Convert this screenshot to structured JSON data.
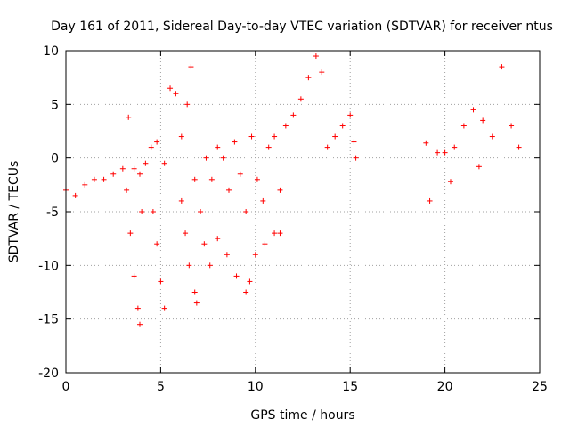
{
  "chart_data": {
    "type": "scatter",
    "title": "Day 161 of 2011, Sidereal Day-to-day VTEC variation (SDTVAR) for receiver ntus",
    "xlabel": "GPS time / hours",
    "ylabel": "SDTVAR / TECUs",
    "xlim": [
      0,
      25
    ],
    "ylim": [
      -20,
      10
    ],
    "xticks": [
      0,
      5,
      10,
      15,
      20,
      25
    ],
    "yticks": [
      -20,
      -15,
      -10,
      -5,
      0,
      5,
      10
    ],
    "grid": true,
    "legend": "none",
    "marker": "plus",
    "color": "#ff0000",
    "series": [
      {
        "x": [
          0.0,
          0.5,
          1.0,
          1.5,
          2.0,
          2.5,
          3.0,
          3.3,
          3.6,
          3.9,
          4.2,
          4.5,
          4.8,
          5.2,
          5.5,
          5.8,
          6.1,
          6.4,
          6.6,
          6.8,
          7.1,
          7.4,
          7.7,
          8.0,
          8.3,
          8.6,
          8.9,
          9.2,
          9.5,
          9.8,
          10.1,
          10.4,
          10.7,
          11.0,
          11.3,
          11.6,
          12.0,
          12.4,
          12.8,
          13.2,
          13.5,
          13.8,
          14.2,
          14.6,
          15.0,
          15.2,
          15.3,
          19.2,
          19.6,
          20.0,
          20.5,
          21.0,
          21.5,
          22.0,
          22.5,
          23.0,
          23.5,
          23.9
        ],
        "y": [
          -3.0,
          -3.5,
          -2.5,
          -2.0,
          -2.0,
          -1.5,
          -1.0,
          3.8,
          -1.0,
          -1.5,
          -0.5,
          1.0,
          1.5,
          -0.5,
          6.5,
          6.0,
          2.0,
          5.0,
          8.5,
          -2.0,
          -5.0,
          0.0,
          -2.0,
          1.0,
          0.0,
          -3.0,
          1.5,
          -1.5,
          -5.0,
          2.0,
          -2.0,
          -4.0,
          1.0,
          2.0,
          -3.0,
          3.0,
          4.0,
          5.5,
          7.5,
          9.5,
          8.0,
          1.0,
          2.0,
          3.0,
          4.0,
          1.5,
          0.0,
          -4.0,
          0.5,
          0.5,
          1.0,
          3.0,
          4.5,
          3.5,
          2.0,
          8.5,
          3.0,
          1.0
        ]
      },
      {
        "x": [
          3.2,
          3.4,
          3.6,
          3.8,
          3.9,
          4.6,
          4.8,
          5.0,
          5.2,
          6.1,
          6.3,
          6.5,
          6.8,
          6.9,
          7.3,
          7.6,
          8.0,
          8.5,
          9.0,
          9.5,
          9.7,
          10.0,
          10.5,
          11.0,
          11.3,
          4.0,
          20.3,
          21.8,
          19.0
        ],
        "y": [
          -3.0,
          -7.0,
          -11.0,
          -14.0,
          -15.5,
          -5.0,
          -8.0,
          -11.5,
          -14.0,
          -4.0,
          -7.0,
          -10.0,
          -12.5,
          -13.5,
          -8.0,
          -10.0,
          -7.5,
          -9.0,
          -11.0,
          -12.5,
          -11.5,
          -9.0,
          -8.0,
          -7.0,
          -7.0,
          -5.0,
          -2.2,
          -0.8,
          1.4
        ]
      }
    ]
  }
}
